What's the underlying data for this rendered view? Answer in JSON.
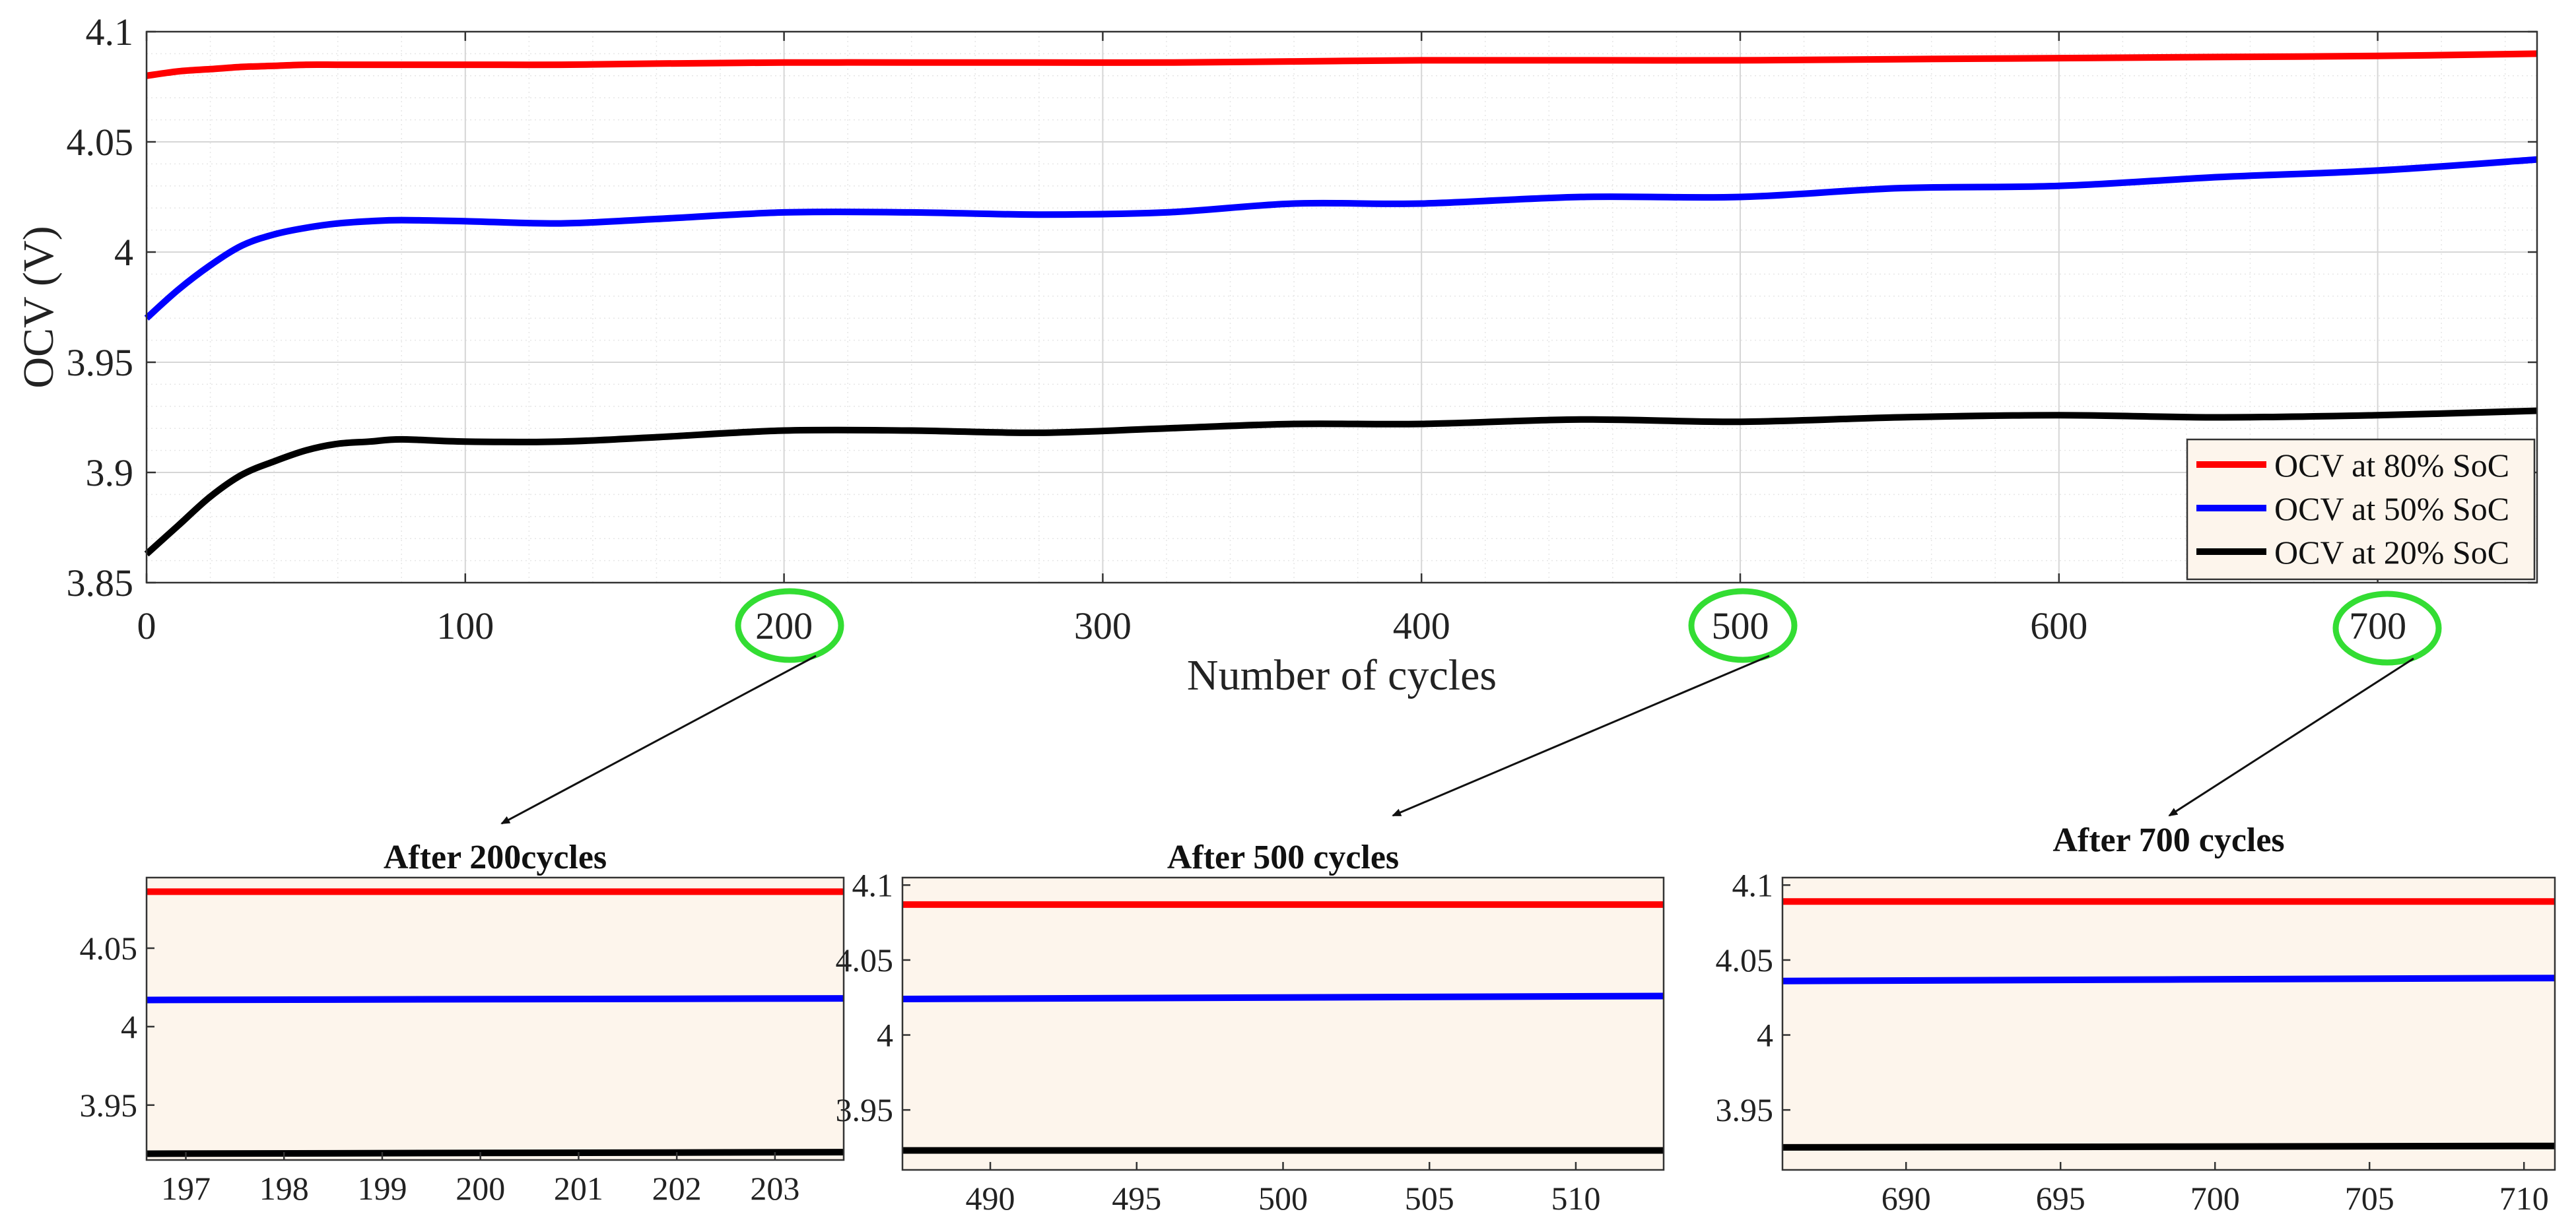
{
  "chart_data": [
    {
      "type": "line",
      "title": "",
      "xlabel": "Number of cycles",
      "ylabel": "OCV (V)",
      "xlim": [
        0,
        750
      ],
      "ylim": [
        3.85,
        4.1
      ],
      "xticks": [
        0,
        100,
        200,
        300,
        400,
        500,
        600,
        700
      ],
      "yticks": [
        3.85,
        3.9,
        3.95,
        4.0,
        4.05,
        4.1
      ],
      "xtick_labels": [
        "0",
        "100",
        "200",
        "300",
        "400",
        "500",
        "600",
        "700"
      ],
      "ytick_labels": [
        "3.85",
        "3.9",
        "3.95",
        "4",
        "4.05",
        "4.1"
      ],
      "grid": true,
      "minor_grid": true,
      "legend_position": "bottom-right",
      "highlighted_ticks": [
        "200",
        "500",
        "700"
      ],
      "x": [
        0,
        10,
        20,
        30,
        40,
        50,
        60,
        70,
        80,
        100,
        130,
        160,
        200,
        240,
        280,
        320,
        360,
        400,
        450,
        500,
        550,
        600,
        650,
        700,
        750
      ],
      "series": [
        {
          "name": "OCV at 80% SoC",
          "color": "#ff0000",
          "values": [
            4.08,
            4.082,
            4.083,
            4.084,
            4.0845,
            4.085,
            4.085,
            4.085,
            4.085,
            4.085,
            4.085,
            4.0855,
            4.086,
            4.086,
            4.086,
            4.086,
            4.0865,
            4.087,
            4.087,
            4.087,
            4.0875,
            4.088,
            4.0885,
            4.089,
            4.09
          ]
        },
        {
          "name": "OCV at 50% SoC",
          "color": "#0000ff",
          "values": [
            3.97,
            3.983,
            3.994,
            4.003,
            4.008,
            4.011,
            4.013,
            4.014,
            4.0145,
            4.014,
            4.013,
            4.015,
            4.018,
            4.018,
            4.017,
            4.018,
            4.022,
            4.022,
            4.025,
            4.025,
            4.029,
            4.03,
            4.034,
            4.037,
            4.042
          ]
        },
        {
          "name": "OCV at 20% SoC",
          "color": "#000000",
          "values": [
            3.863,
            3.876,
            3.889,
            3.899,
            3.905,
            3.91,
            3.913,
            3.914,
            3.915,
            3.914,
            3.914,
            3.916,
            3.919,
            3.919,
            3.918,
            3.92,
            3.922,
            3.922,
            3.924,
            3.923,
            3.925,
            3.926,
            3.925,
            3.926,
            3.928
          ]
        }
      ]
    },
    {
      "type": "line",
      "title": "After 200cycles",
      "xlim": [
        196.6,
        203.7
      ],
      "ylim": [
        3.915,
        4.095
      ],
      "xticks": [
        197,
        198,
        199,
        200,
        201,
        202,
        203
      ],
      "yticks": [
        3.95,
        4.0,
        4.05
      ],
      "xtick_labels": [
        "197",
        "198",
        "199",
        "200",
        "201",
        "202",
        "203"
      ],
      "ytick_labels": [
        "3.95",
        "4",
        "4.05"
      ],
      "series": [
        {
          "name": "OCV at 80% SoC",
          "color": "#ff0000",
          "x": [
            196.6,
            203.7
          ],
          "values": [
            4.086,
            4.086
          ]
        },
        {
          "name": "OCV at 50% SoC",
          "color": "#0000ff",
          "x": [
            196.6,
            203.7
          ],
          "values": [
            4.017,
            4.018
          ]
        },
        {
          "name": "OCV at 20% SoC",
          "color": "#000000",
          "x": [
            196.6,
            203.7
          ],
          "values": [
            3.919,
            3.92
          ]
        }
      ]
    },
    {
      "type": "line",
      "title": "After 500 cycles",
      "xlim": [
        487,
        513
      ],
      "ylim": [
        3.91,
        4.105
      ],
      "xticks": [
        490,
        495,
        500,
        505,
        510
      ],
      "yticks": [
        3.95,
        4.0,
        4.05,
        4.1
      ],
      "xtick_labels": [
        "490",
        "495",
        "500",
        "505",
        "510"
      ],
      "ytick_labels": [
        "3.95",
        "4",
        "4.05",
        "4.1"
      ],
      "series": [
        {
          "name": "OCV at 80% SoC",
          "color": "#ff0000",
          "x": [
            487,
            513
          ],
          "values": [
            4.087,
            4.087
          ]
        },
        {
          "name": "OCV at 50% SoC",
          "color": "#0000ff",
          "x": [
            487,
            513
          ],
          "values": [
            4.024,
            4.026
          ]
        },
        {
          "name": "OCV at 20% SoC",
          "color": "#000000",
          "x": [
            487,
            513
          ],
          "values": [
            3.923,
            3.923
          ]
        }
      ]
    },
    {
      "type": "line",
      "title": "After 700 cycles",
      "xlim": [
        686,
        711
      ],
      "ylim": [
        3.91,
        4.105
      ],
      "xticks": [
        690,
        695,
        700,
        705,
        710
      ],
      "yticks": [
        3.95,
        4.0,
        4.05,
        4.1
      ],
      "xtick_labels": [
        "690",
        "695",
        "700",
        "705",
        "710"
      ],
      "ytick_labels": [
        "3.95",
        "4",
        "4.05",
        "4.1"
      ],
      "series": [
        {
          "name": "OCV at 80% SoC",
          "color": "#ff0000",
          "x": [
            686,
            711
          ],
          "values": [
            4.089,
            4.089
          ]
        },
        {
          "name": "OCV at 50% SoC",
          "color": "#0000ff",
          "x": [
            686,
            711
          ],
          "values": [
            4.036,
            4.038
          ]
        },
        {
          "name": "OCV at 20% SoC",
          "color": "#000000",
          "x": [
            686,
            711
          ],
          "values": [
            3.925,
            3.926
          ]
        }
      ]
    }
  ],
  "style": {
    "plot_background": "#fdf5ec",
    "grid_color": "#d6d6d6",
    "minor_grid_color": "#e6e6e6",
    "highlight_color": "#33dd33",
    "arrow_color": "#111111",
    "legend_background": "#fdf5ec"
  }
}
